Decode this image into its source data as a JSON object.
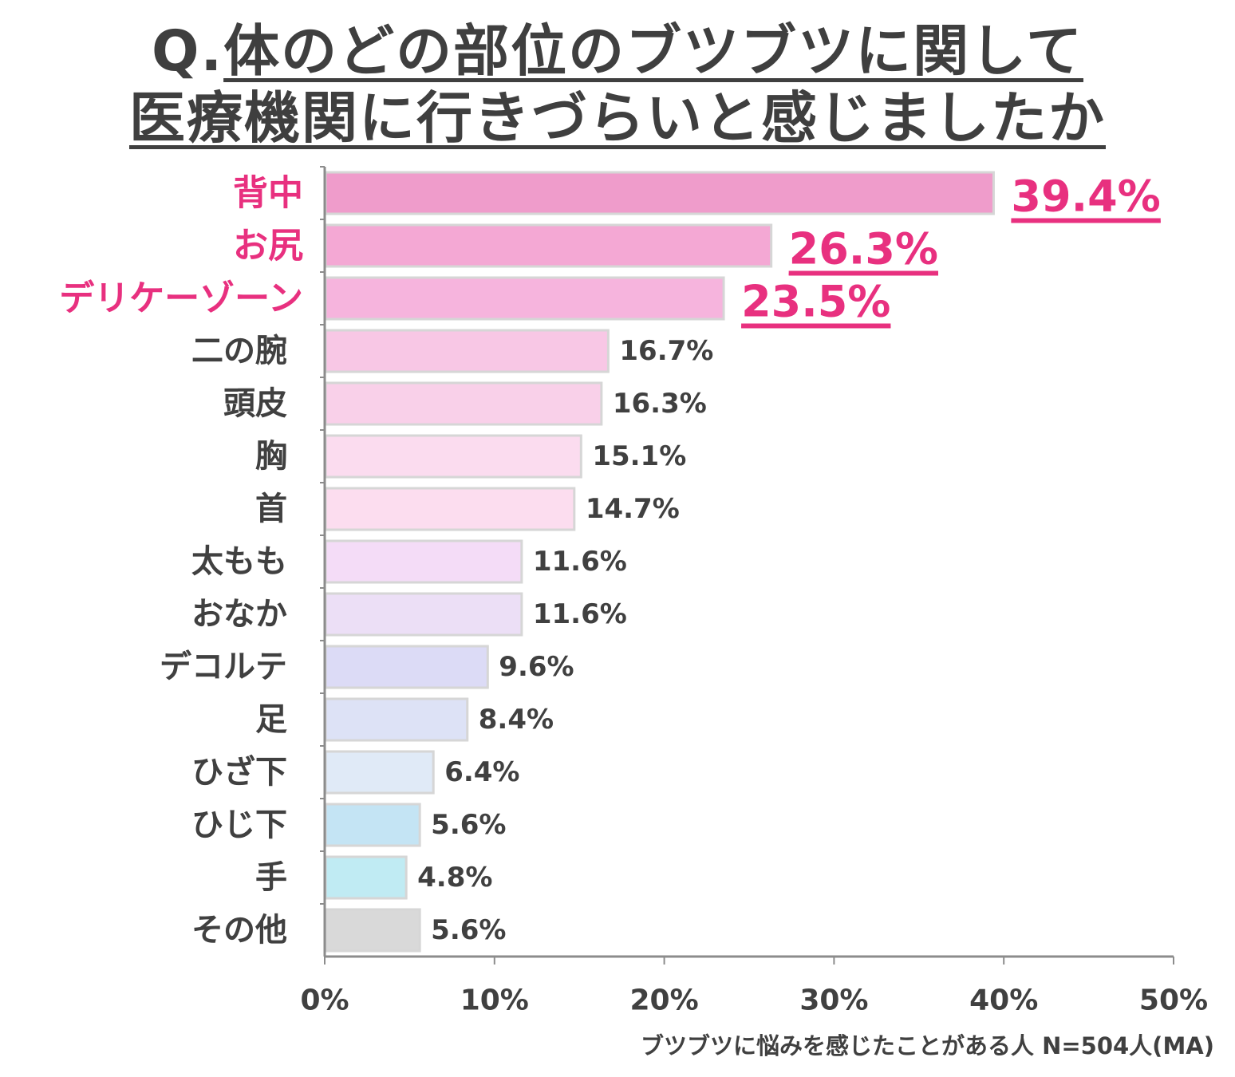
{
  "chart_data": {
    "type": "bar",
    "orientation": "horizontal",
    "title_prefix": "Q.",
    "title_line1": "体のどの部位のブツブツに関して",
    "title_line2": "医療機関に行きづらいと感じましたか",
    "categories": [
      "背中",
      "お尻",
      "デリケーゾーン",
      "二の腕",
      "頭皮",
      "胸",
      "首",
      "太もも",
      "おなか",
      "デコルテ",
      "足",
      "ひざ下",
      "ひじ下",
      "手",
      "その他"
    ],
    "values": [
      39.4,
      26.3,
      23.5,
      16.7,
      16.3,
      15.1,
      14.7,
      11.6,
      11.6,
      9.6,
      8.4,
      6.4,
      5.6,
      4.8,
      5.6
    ],
    "value_labels": [
      "39.4%",
      "26.3%",
      "23.5%",
      "16.7%",
      "16.3%",
      "15.1%",
      "14.7%",
      "11.6%",
      "11.6%",
      "9.6%",
      "8.4%",
      "6.4%",
      "5.6%",
      "4.8%",
      "5.6%"
    ],
    "highlight_count": 3,
    "bar_colors": [
      "#ef9ccb",
      "#f4a8d4",
      "#f6b4dd",
      "#f8c7e5",
      "#f9d0e9",
      "#fbdcef",
      "#fcddef",
      "#f4dcf7",
      "#ecdff6",
      "#dcdbf6",
      "#dde2f6",
      "#e0eaf7",
      "#c4e4f4",
      "#c0ebf3",
      "#d9d9d9"
    ],
    "highlight_color": "#e8307f",
    "axis_color": "#8c8c8c",
    "xlim": [
      0,
      50
    ],
    "xticks": [
      "0%",
      "10%",
      "20%",
      "30%",
      "40%",
      "50%"
    ],
    "xtick_values": [
      0,
      10,
      20,
      30,
      40,
      50
    ],
    "footnote": "ブツブツに悩みを感じたことがある人 N=504人(MA)"
  }
}
